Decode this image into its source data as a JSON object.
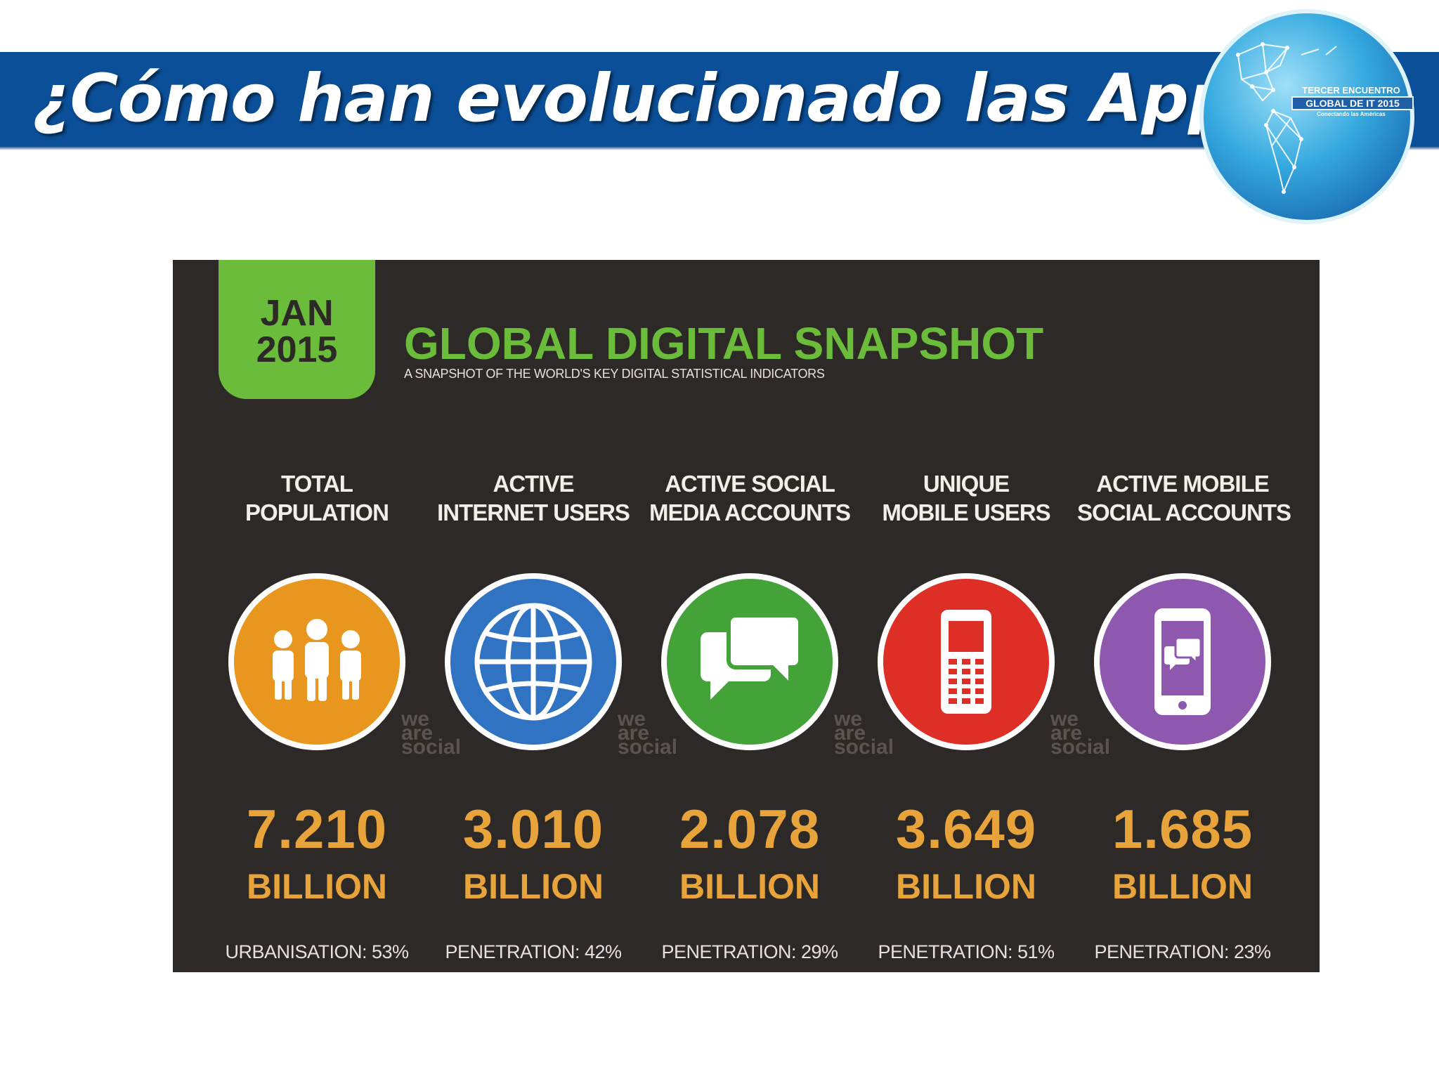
{
  "header": {
    "title": "¿Cómo han evolucionado las Apps?"
  },
  "logo": {
    "line1": "TERCER ENCUENTRO",
    "line2": "GLOBAL DE IT 2015",
    "line3": "Conectando las Américas"
  },
  "snapshot": {
    "date_month": "JAN",
    "date_year": "2015",
    "title": "GLOBAL DIGITAL SNAPSHOT",
    "subtitle": "A SNAPSHOT OF THE WORLD'S KEY DIGITAL STATISTICAL INDICATORS",
    "watermark": [
      "we",
      "are",
      "social"
    ],
    "stats": [
      {
        "label_lines": [
          "TOTAL",
          "POPULATION"
        ],
        "value": "7.210",
        "unit": "BILLION",
        "footnote": "URBANISATION: 53%",
        "color": "#e8961e",
        "icon": "people-icon"
      },
      {
        "label_lines": [
          "ACTIVE",
          "INTERNET USERS"
        ],
        "value": "3.010",
        "unit": "BILLION",
        "footnote": "PENETRATION: 42%",
        "color": "#2f73c2",
        "icon": "globe-icon"
      },
      {
        "label_lines": [
          "ACTIVE SOCIAL",
          "MEDIA ACCOUNTS"
        ],
        "value": "2.078",
        "unit": "BILLION",
        "footnote": "PENETRATION: 29%",
        "color": "#43a338",
        "icon": "speech-bubbles-icon"
      },
      {
        "label_lines": [
          "UNIQUE",
          "MOBILE USERS"
        ],
        "value": "3.649",
        "unit": "BILLION",
        "footnote": "PENETRATION: 51%",
        "color": "#de2f27",
        "icon": "mobile-phone-icon"
      },
      {
        "label_lines": [
          "ACTIVE MOBILE",
          "SOCIAL ACCOUNTS"
        ],
        "value": "1.685",
        "unit": "BILLION",
        "footnote": "PENETRATION: 23%",
        "color": "#8e58ae",
        "icon": "smartphone-chat-icon"
      }
    ]
  }
}
